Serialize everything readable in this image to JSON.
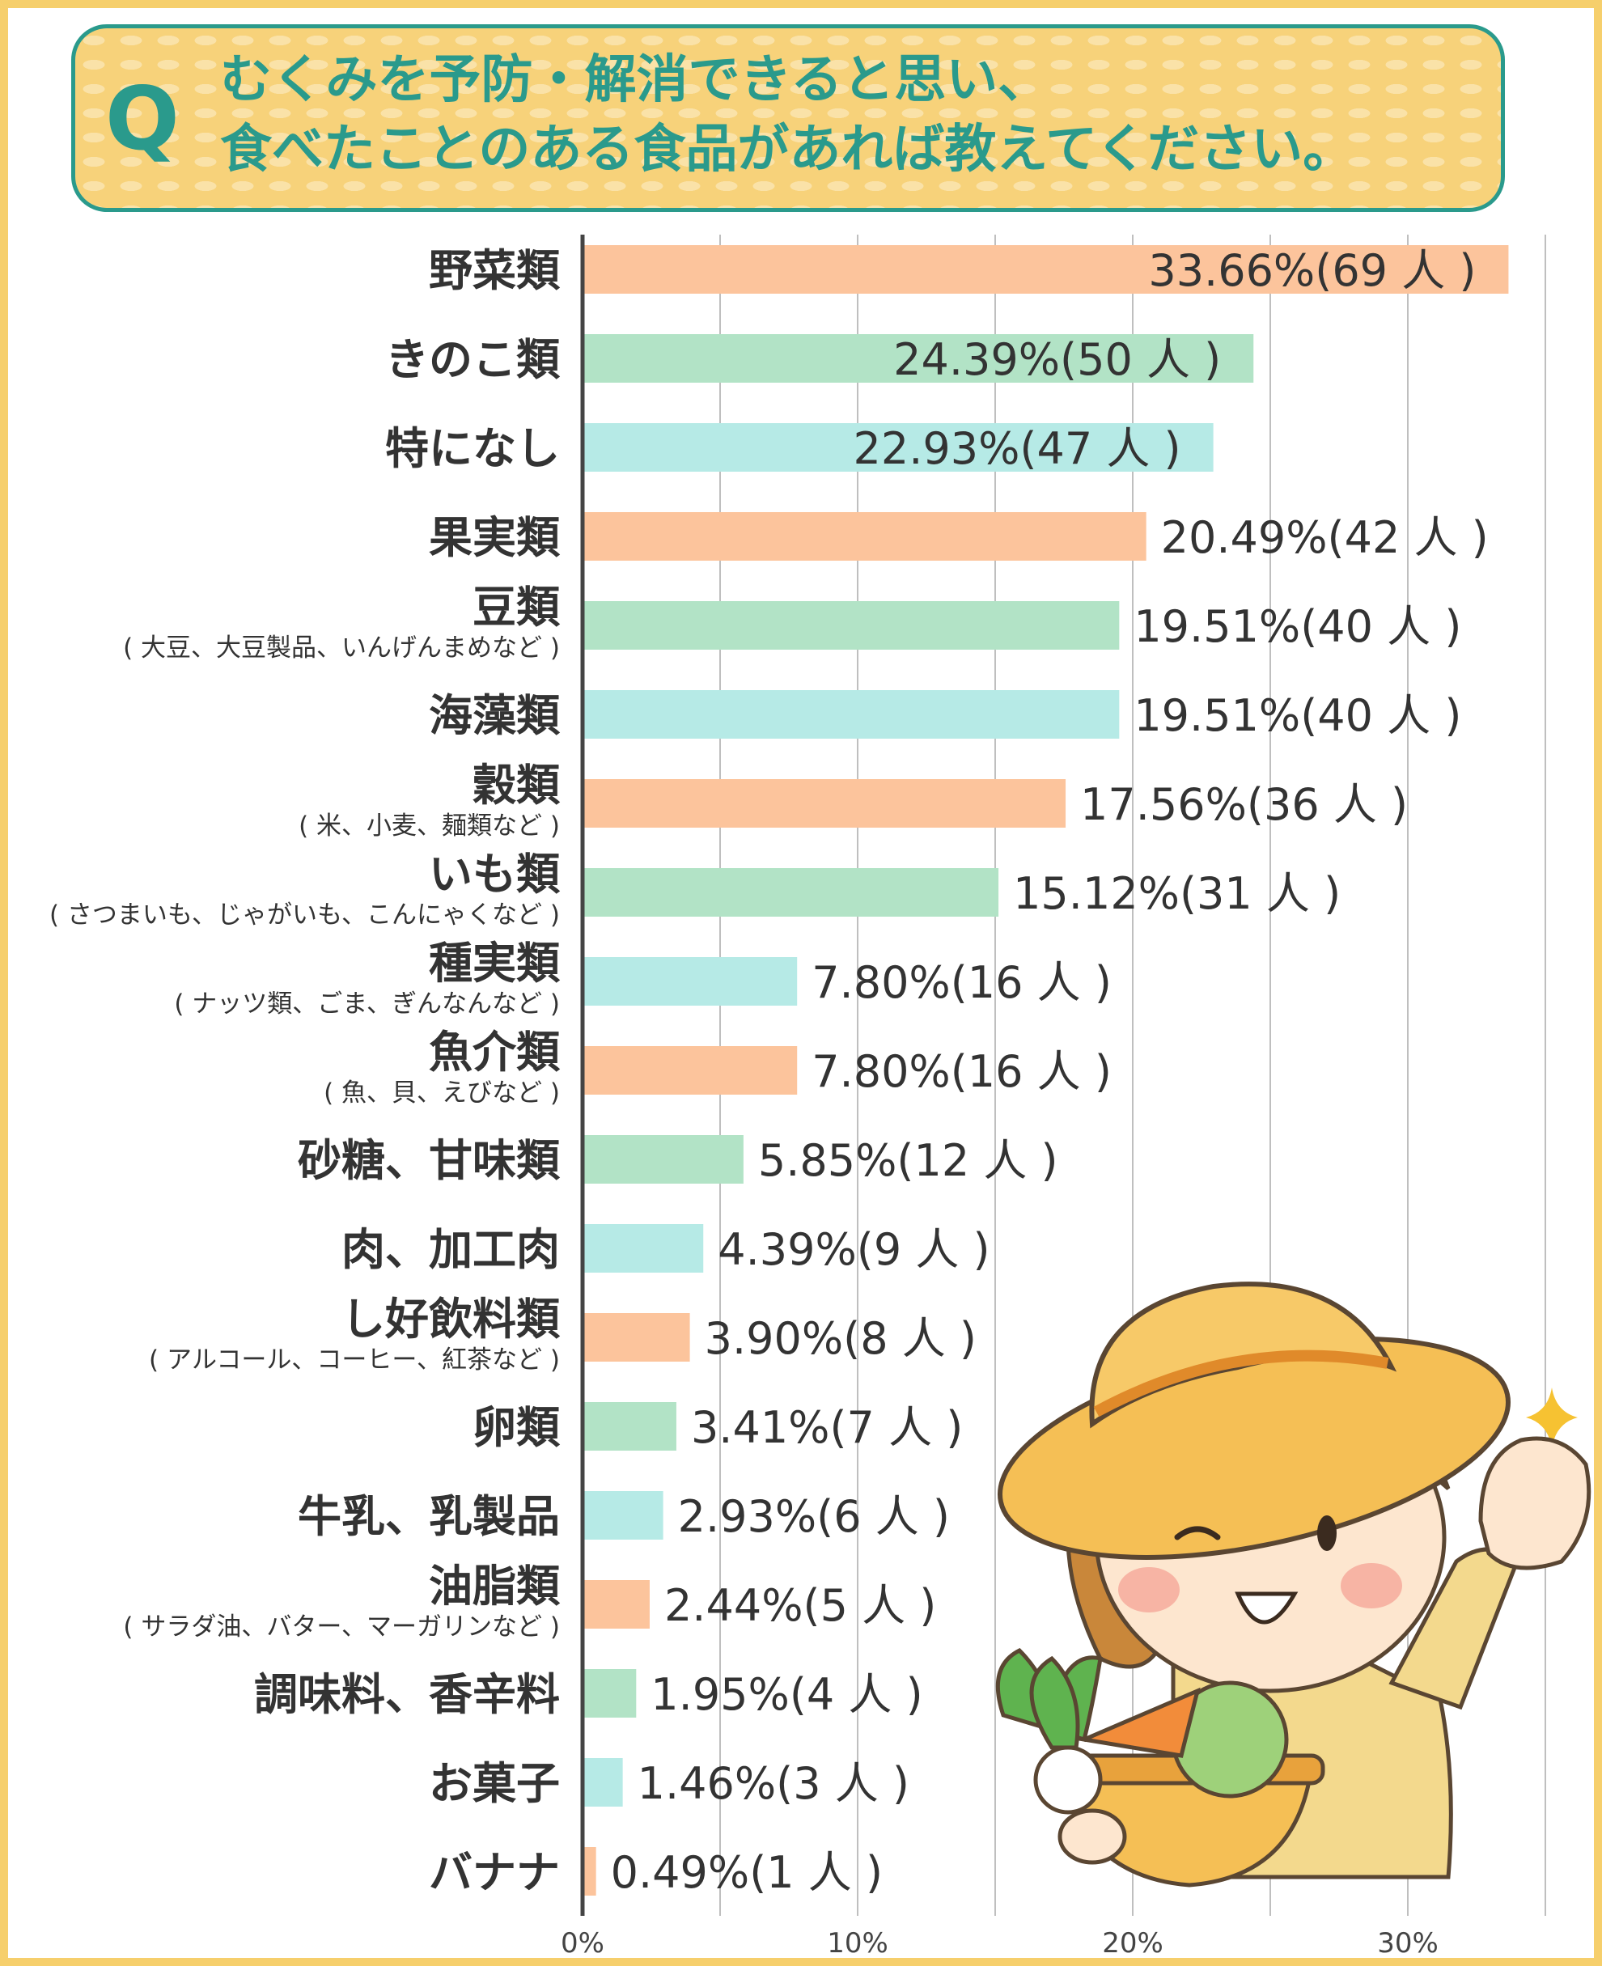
{
  "question": {
    "mark": "Q",
    "line1": "むくみを予防・解消できると思い、",
    "line2": "食べたことのある食品があれば教えてください。"
  },
  "colors": {
    "orange": "#fcc49c",
    "green": "#b2e3c6",
    "cyan": "#b6eae6",
    "accent": "#2a9a8c",
    "frame": "#f6cf6c"
  },
  "chart_data": {
    "type": "bar",
    "orientation": "horizontal",
    "xlim": [
      0,
      35
    ],
    "ticks": [
      {
        "value": 0,
        "label": "0%"
      },
      {
        "value": 10,
        "label": "10%"
      },
      {
        "value": 20,
        "label": "20%"
      },
      {
        "value": 30,
        "label": "30%"
      }
    ],
    "grid": true,
    "bars": [
      {
        "label": "野菜類",
        "sub": "",
        "value": 33.66,
        "text": "33.66%(69 人 )",
        "color": "orange",
        "inside": true
      },
      {
        "label": "きのこ類",
        "sub": "",
        "value": 24.39,
        "text": "24.39%(50 人 )",
        "color": "green",
        "inside": true
      },
      {
        "label": "特になし",
        "sub": "",
        "value": 22.93,
        "text": "22.93%(47 人 )",
        "color": "cyan",
        "inside": true
      },
      {
        "label": "果実類",
        "sub": "",
        "value": 20.49,
        "text": "20.49%(42 人 )",
        "color": "orange",
        "inside": false
      },
      {
        "label": "豆類",
        "sub": "( 大豆、大豆製品、いんげんまめなど )",
        "value": 19.51,
        "text": "19.51%(40 人 )",
        "color": "green",
        "inside": false
      },
      {
        "label": "海藻類",
        "sub": "",
        "value": 19.51,
        "text": "19.51%(40 人 )",
        "color": "cyan",
        "inside": false
      },
      {
        "label": "穀類",
        "sub": "( 米、小麦、麺類など )",
        "value": 17.56,
        "text": "17.56%(36 人 )",
        "color": "orange",
        "inside": false
      },
      {
        "label": "いも類",
        "sub": "( さつまいも、じゃがいも、こんにゃくなど )",
        "value": 15.12,
        "text": "15.12%(31 人 )",
        "color": "green",
        "inside": false
      },
      {
        "label": "種実類",
        "sub": "( ナッツ類、ごま、ぎんなんなど )",
        "value": 7.8,
        "text": "7.80%(16 人 )",
        "color": "cyan",
        "inside": false
      },
      {
        "label": "魚介類",
        "sub": "( 魚、貝、えびなど )",
        "value": 7.8,
        "text": "7.80%(16 人 )",
        "color": "orange",
        "inside": false
      },
      {
        "label": "砂糖、甘味類",
        "sub": "",
        "value": 5.85,
        "text": "5.85%(12 人 )",
        "color": "green",
        "inside": false
      },
      {
        "label": "肉、加工肉",
        "sub": "",
        "value": 4.39,
        "text": "4.39%(9 人 )",
        "color": "cyan",
        "inside": false
      },
      {
        "label": "し好飲料類",
        "sub": "( アルコール、コーヒー、紅茶など )",
        "value": 3.9,
        "text": "3.90%(8 人 )",
        "color": "orange",
        "inside": false
      },
      {
        "label": "卵類",
        "sub": "",
        "value": 3.41,
        "text": "3.41%(7 人 )",
        "color": "green",
        "inside": false
      },
      {
        "label": "牛乳、乳製品",
        "sub": "",
        "value": 2.93,
        "text": "2.93%(6 人 )",
        "color": "cyan",
        "inside": false
      },
      {
        "label": "油脂類",
        "sub": "( サラダ油、バター、マーガリンなど )",
        "value": 2.44,
        "text": "2.44%(5 人 )",
        "color": "orange",
        "inside": false
      },
      {
        "label": "調味料、香辛料",
        "sub": "",
        "value": 1.95,
        "text": "1.95%(4 人 )",
        "color": "green",
        "inside": false
      },
      {
        "label": "お菓子",
        "sub": "",
        "value": 1.46,
        "text": "1.46%(3 人 )",
        "color": "cyan",
        "inside": false
      },
      {
        "label": "バナナ",
        "sub": "",
        "value": 0.49,
        "text": "0.49%(1 人 )",
        "color": "orange",
        "inside": false
      }
    ]
  }
}
